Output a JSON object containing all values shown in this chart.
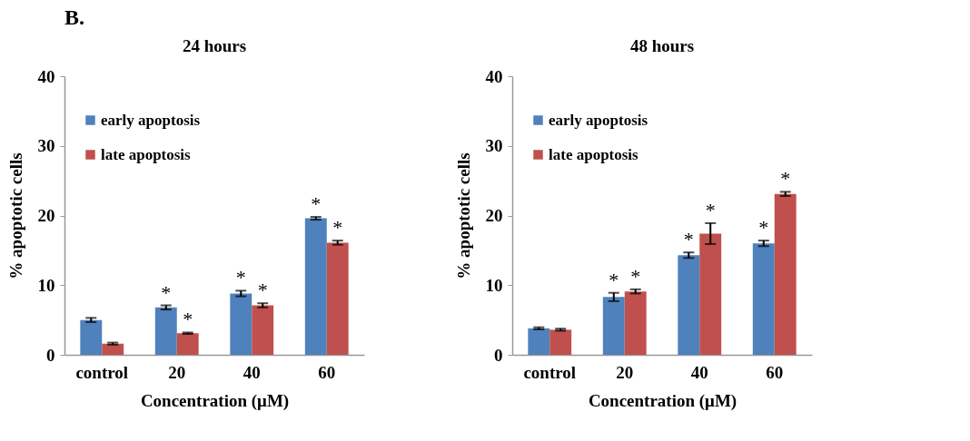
{
  "chart_data": [
    {
      "type": "bar",
      "title": "24 hours",
      "xlabel": "Concentration (μM)",
      "ylabel": "% apoptotic cells",
      "annotations": [
        "B."
      ],
      "categories": [
        "control",
        "20",
        "40",
        "60"
      ],
      "ylim": [
        0,
        40
      ],
      "yticks": [
        0,
        10,
        20,
        30,
        40
      ],
      "grid": false,
      "legend": "top left",
      "series": [
        {
          "name": "early apoptosis",
          "color": "#4f81bd",
          "values": [
            5.0,
            6.8,
            8.8,
            19.6
          ],
          "errors": [
            0.3,
            0.3,
            0.4,
            0.2
          ],
          "value_labels": [
            null,
            "*",
            "*",
            "*"
          ]
        },
        {
          "name": "late apoptosis",
          "color": "#c0504d",
          "values": [
            1.6,
            3.1,
            7.1,
            16.1
          ],
          "errors": [
            0.15,
            0.1,
            0.3,
            0.3
          ],
          "value_labels": [
            null,
            "*",
            "*",
            "*"
          ]
        }
      ]
    },
    {
      "type": "bar",
      "title": "48 hours",
      "xlabel": "Concentration (μM)",
      "ylabel": "% apoptotic cells",
      "categories": [
        "control",
        "20",
        "40",
        "60"
      ],
      "ylim": [
        0,
        40
      ],
      "yticks": [
        0,
        10,
        20,
        30,
        40
      ],
      "grid": false,
      "legend": "top left",
      "series": [
        {
          "name": "early apoptosis",
          "color": "#4f81bd",
          "values": [
            3.8,
            8.3,
            14.3,
            16.0
          ],
          "errors": [
            0.15,
            0.6,
            0.4,
            0.4
          ],
          "value_labels": [
            null,
            "*",
            "*",
            "*"
          ]
        },
        {
          "name": "late apoptosis",
          "color": "#c0504d",
          "values": [
            3.6,
            9.1,
            17.4,
            23.1
          ],
          "errors": [
            0.15,
            0.3,
            1.5,
            0.3
          ],
          "value_labels": [
            null,
            "*",
            "*",
            "*"
          ]
        }
      ]
    }
  ]
}
